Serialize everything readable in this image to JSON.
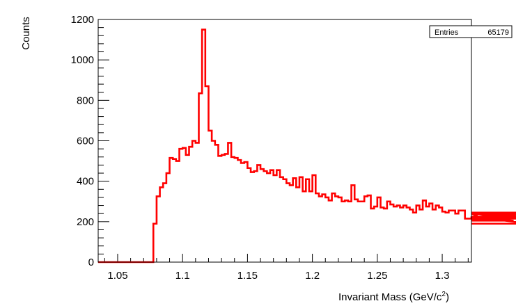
{
  "chart_data": {
    "type": "histogram",
    "title": "",
    "xlabel": "Invariant Mass (GeV/c",
    "xlabel_sup": "2",
    "xlabel_close": ")",
    "ylabel": "Counts",
    "xlim": [
      1.035,
      1.3225
    ],
    "ylim": [
      0,
      1200
    ],
    "grid": false,
    "line_color": "#ff0000",
    "x_ticks": [
      "1.05",
      "1.1",
      "1.15",
      "1.2",
      "1.25",
      "1.3"
    ],
    "y_ticks": [
      "0",
      "200",
      "400",
      "600",
      "800",
      "1000",
      "1200"
    ],
    "stats": {
      "label": "Entries",
      "value": "65179"
    },
    "bin_width": 0.0025,
    "bin_edges_start": 1.035,
    "values": [
      0,
      0,
      0,
      0,
      0,
      0,
      0,
      0,
      0,
      0,
      0,
      0,
      0,
      0,
      0,
      0,
      0,
      190,
      325,
      370,
      390,
      440,
      515,
      510,
      500,
      560,
      565,
      530,
      570,
      600,
      590,
      835,
      1150,
      870,
      650,
      600,
      580,
      525,
      530,
      535,
      590,
      520,
      515,
      505,
      490,
      495,
      465,
      445,
      450,
      480,
      460,
      450,
      440,
      455,
      430,
      455,
      420,
      410,
      390,
      380,
      415,
      370,
      420,
      350,
      410,
      350,
      430,
      340,
      325,
      335,
      320,
      305,
      340,
      325,
      320,
      300,
      305,
      300,
      380,
      310,
      300,
      300,
      325,
      330,
      265,
      275,
      320,
      270,
      265,
      300,
      285,
      275,
      280,
      270,
      280,
      270,
      260,
      245,
      280,
      260,
      305,
      275,
      290,
      260,
      280,
      270,
      250,
      245,
      255,
      255,
      240,
      255,
      255,
      215,
      215,
      220,
      215,
      240,
      220,
      215,
      210,
      225,
      215,
      220,
      205,
      245,
      210,
      220,
      205,
      245,
      215,
      240,
      225,
      190
    ]
  }
}
